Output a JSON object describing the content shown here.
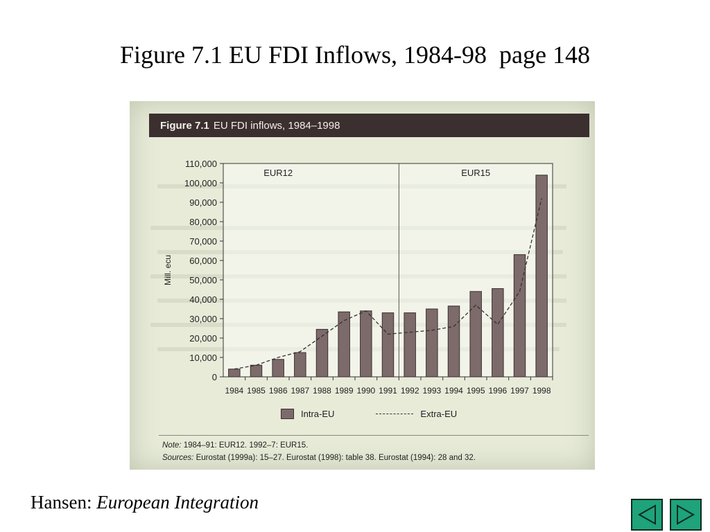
{
  "slide": {
    "title": "Figure 7.1 EU FDI Inflows, 1984-98  page 148",
    "footer_author": "Hansen: ",
    "footer_book": "European Integration"
  },
  "figure": {
    "label": "Figure 7.1",
    "caption": "EU FDI inflows, 1984–1998",
    "legend_intra": "Intra-EU",
    "legend_extra": "Extra-EU",
    "note_label": "Note:",
    "note_text": " 1984–91: EUR12. 1992–7: EUR15.",
    "sources_label": "Sources:",
    "sources_text": " Eurostat (1999a): 15–27. Eurostat (1998): table 38. Eurostat (1994): 28 and 32."
  },
  "chart_data": {
    "type": "bar",
    "title": "EU FDI inflows, 1984–1998",
    "ylabel": "Mill. ecu",
    "ylim": [
      0,
      110000
    ],
    "yticks": [
      "0",
      "10,000",
      "20,000",
      "30,000",
      "40,000",
      "50,000",
      "60,000",
      "70,000",
      "80,000",
      "90,000",
      "100,000",
      "110,000"
    ],
    "categories": [
      "1984",
      "1985",
      "1986",
      "1987",
      "1988",
      "1989",
      "1990",
      "1991",
      "1992",
      "1993",
      "1994",
      "1995",
      "1996",
      "1997",
      "1998"
    ],
    "regions": [
      "EUR12",
      "EUR15"
    ],
    "series": [
      {
        "name": "Intra-EU",
        "kind": "bar",
        "color": "#7d6a6a",
        "values": [
          4000,
          6000,
          9000,
          12500,
          24500,
          33500,
          34000,
          33000,
          33000,
          35000,
          36500,
          44000,
          45500,
          63000,
          104000
        ]
      },
      {
        "name": "Extra-EU",
        "kind": "dashed-line",
        "color": "#333333",
        "values": [
          4000,
          6000,
          10000,
          13000,
          21000,
          29000,
          34000,
          22000,
          23000,
          24000,
          26000,
          37000,
          27000,
          44000,
          92000
        ]
      }
    ],
    "legend_position": "bottom",
    "grid": false
  },
  "colors": {
    "header_bg": "#3b2f2f",
    "bar_fill": "#7d6a6a",
    "nav_button": "#1ea37a"
  },
  "nav": {
    "prev_icon": "triangle-left-icon",
    "next_icon": "triangle-right-icon"
  }
}
